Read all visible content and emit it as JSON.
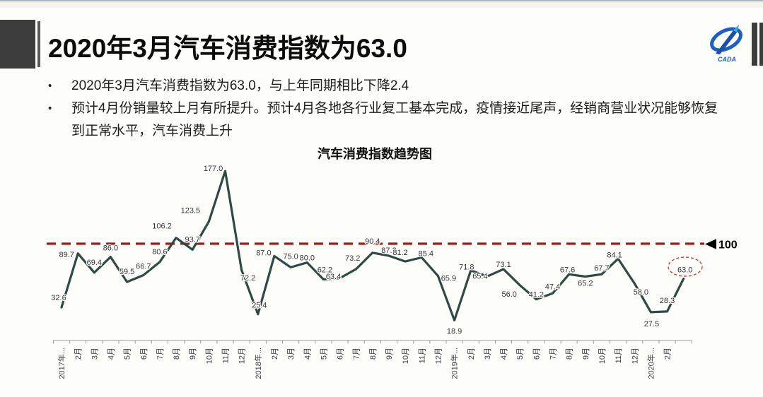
{
  "header": {
    "title": "2020年3月汽车消费指数为63.0",
    "logo_text": "CADA"
  },
  "bullets": [
    {
      "marker": "•",
      "text": "2020年3月汽车消费指数为63.0，与上年同期相比下降2.4"
    },
    {
      "marker": "•",
      "text": "预计4月份销量较上月有所提升。预计4月各地各行业复工基本完成，疫情接近尾声，经销商营业状况能够恢复到正常水平，汽车消费上升"
    }
  ],
  "chart_data": {
    "type": "line",
    "title": "汽车消费指数趋势图",
    "x_tick_labels": [
      "2017年...",
      "2月",
      "3月",
      "4月",
      "5月",
      "6月",
      "7月",
      "8月",
      "9月",
      "10月",
      "11月",
      "12月",
      "2018年...",
      "2月",
      "3月",
      "4月",
      "5月",
      "6月",
      "7月",
      "8月",
      "9月",
      "10月",
      "11月",
      "12月",
      "2019年...",
      "2月",
      "3月",
      "4月",
      "5月",
      "6月",
      "7月",
      "8月",
      "9月",
      "10月",
      "11月",
      "12月",
      "2020年...",
      "2月",
      ""
    ],
    "values": [
      32.6,
      89.7,
      69.4,
      86.0,
      59.5,
      66.7,
      80.6,
      106.2,
      93.7,
      123.5,
      177.0,
      72.2,
      25.4,
      87.0,
      75.0,
      80.0,
      62.2,
      63.4,
      73.2,
      90.4,
      87.2,
      81.2,
      85.4,
      65.9,
      18.9,
      71.8,
      65.4,
      73.1,
      56.0,
      41.2,
      47.4,
      67.6,
      65.2,
      67.7,
      84.1,
      58.0,
      27.5,
      28.3,
      63.0
    ],
    "value_labels": [
      "32.6",
      "89.7",
      "69.4",
      "86.0",
      "59.5",
      "66.7",
      "80.6",
      "106.2",
      "93.7",
      "123.5",
      "177.0",
      "72.2",
      "25.4",
      "87.0",
      "75.0",
      "80.0",
      "62.2",
      "63.4",
      "73.2",
      "90.4",
      "87.2",
      "81.2",
      "85.4",
      "65.9",
      "18.9",
      "71.8",
      "65.4",
      "73.1",
      "56.0",
      "41.2",
      "47.4",
      "67.6",
      "65.2",
      "67.7",
      "84.1",
      "58.0",
      "27.5",
      "28.3",
      "63.0"
    ],
    "reference_line": {
      "value": 100,
      "label": "100"
    },
    "highlighted_point": {
      "index": 38,
      "value": 63.0,
      "label": "63.0"
    },
    "line_color": "#2e4a45",
    "reference_color": "#9e1b1e",
    "highlight_color": "#cf3a3a",
    "axis_color": "#9a9a9a",
    "legend": "none",
    "grid": "off"
  }
}
